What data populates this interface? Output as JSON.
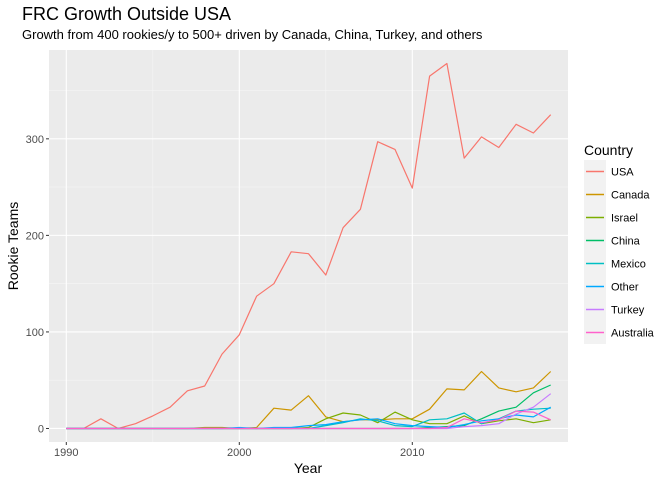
{
  "chart_data": {
    "type": "line",
    "title": "FRC Growth Outside USA",
    "subtitle": "Growth from 400 rookies/y to 500+ driven by Canada, China, Turkey, and others",
    "xlabel": "Year",
    "ylabel": "Rookie Teams",
    "xlim": [
      1989,
      2019
    ],
    "ylim": [
      -14,
      392
    ],
    "x_ticks": [
      1990,
      2000,
      2010
    ],
    "y_ticks": [
      0,
      100,
      200,
      300
    ],
    "grid": true,
    "legend": {
      "title": "Country",
      "position": "right"
    },
    "series": [
      {
        "name": "USA",
        "color": "#F8766D",
        "points": [
          [
            1990,
            0
          ],
          [
            1991,
            0
          ],
          [
            1992,
            10
          ],
          [
            1993,
            0
          ],
          [
            1994,
            5
          ],
          [
            1995,
            13
          ],
          [
            1996,
            22
          ],
          [
            1997,
            39
          ],
          [
            1998,
            44
          ],
          [
            1999,
            77
          ],
          [
            2000,
            97
          ],
          [
            2001,
            137
          ],
          [
            2002,
            150
          ],
          [
            2003,
            183
          ],
          [
            2004,
            181
          ],
          [
            2005,
            159
          ],
          [
            2006,
            208
          ],
          [
            2007,
            227
          ],
          [
            2008,
            297
          ],
          [
            2009,
            289
          ],
          [
            2010,
            249
          ],
          [
            2011,
            365
          ],
          [
            2012,
            378
          ],
          [
            2013,
            280
          ],
          [
            2014,
            302
          ],
          [
            2015,
            291
          ],
          [
            2016,
            315
          ],
          [
            2017,
            306
          ],
          [
            2018,
            325
          ]
        ]
      },
      {
        "name": "Canada",
        "color": "#CD9600",
        "points": [
          [
            1990,
            0
          ],
          [
            1991,
            0
          ],
          [
            1992,
            0
          ],
          [
            1993,
            0
          ],
          [
            1994,
            0
          ],
          [
            1995,
            0
          ],
          [
            1996,
            0
          ],
          [
            1997,
            0
          ],
          [
            1998,
            1
          ],
          [
            1999,
            1
          ],
          [
            2000,
            0
          ],
          [
            2001,
            1
          ],
          [
            2002,
            21
          ],
          [
            2003,
            19
          ],
          [
            2004,
            34
          ],
          [
            2005,
            12
          ],
          [
            2006,
            7
          ],
          [
            2007,
            9
          ],
          [
            2008,
            9
          ],
          [
            2009,
            10
          ],
          [
            2010,
            10
          ],
          [
            2011,
            20
          ],
          [
            2012,
            41
          ],
          [
            2013,
            40
          ],
          [
            2014,
            59
          ],
          [
            2015,
            42
          ],
          [
            2016,
            38
          ],
          [
            2017,
            42
          ],
          [
            2018,
            59
          ]
        ]
      },
      {
        "name": "Israel",
        "color": "#7CAE00",
        "points": [
          [
            1990,
            0
          ],
          [
            1991,
            0
          ],
          [
            1992,
            0
          ],
          [
            1993,
            0
          ],
          [
            1994,
            0
          ],
          [
            1995,
            0
          ],
          [
            1996,
            0
          ],
          [
            1997,
            0
          ],
          [
            1998,
            0
          ],
          [
            1999,
            0
          ],
          [
            2000,
            0
          ],
          [
            2001,
            0
          ],
          [
            2002,
            0
          ],
          [
            2003,
            0
          ],
          [
            2004,
            1
          ],
          [
            2005,
            10
          ],
          [
            2006,
            16
          ],
          [
            2007,
            14
          ],
          [
            2008,
            6
          ],
          [
            2009,
            17
          ],
          [
            2010,
            9
          ],
          [
            2011,
            5
          ],
          [
            2012,
            5
          ],
          [
            2013,
            13
          ],
          [
            2014,
            5
          ],
          [
            2015,
            8
          ],
          [
            2016,
            10
          ],
          [
            2017,
            6
          ],
          [
            2018,
            9
          ]
        ]
      },
      {
        "name": "China",
        "color": "#00BE67",
        "points": [
          [
            1990,
            0
          ],
          [
            1991,
            0
          ],
          [
            1992,
            0
          ],
          [
            1993,
            0
          ],
          [
            1994,
            0
          ],
          [
            1995,
            0
          ],
          [
            1996,
            0
          ],
          [
            1997,
            0
          ],
          [
            1998,
            0
          ],
          [
            1999,
            0
          ],
          [
            2000,
            0
          ],
          [
            2001,
            0
          ],
          [
            2002,
            0
          ],
          [
            2003,
            0
          ],
          [
            2004,
            0
          ],
          [
            2005,
            0
          ],
          [
            2006,
            0
          ],
          [
            2007,
            0
          ],
          [
            2008,
            0
          ],
          [
            2009,
            0
          ],
          [
            2010,
            0
          ],
          [
            2011,
            1
          ],
          [
            2012,
            2
          ],
          [
            2013,
            3
          ],
          [
            2014,
            10
          ],
          [
            2015,
            18
          ],
          [
            2016,
            22
          ],
          [
            2017,
            37
          ],
          [
            2018,
            45
          ]
        ]
      },
      {
        "name": "Mexico",
        "color": "#00BFC4",
        "points": [
          [
            1990,
            0
          ],
          [
            1991,
            0
          ],
          [
            1992,
            0
          ],
          [
            1993,
            0
          ],
          [
            1994,
            0
          ],
          [
            1995,
            0
          ],
          [
            1996,
            0
          ],
          [
            1997,
            0
          ],
          [
            1998,
            0
          ],
          [
            1999,
            0
          ],
          [
            2000,
            0
          ],
          [
            2001,
            0
          ],
          [
            2002,
            0
          ],
          [
            2003,
            0
          ],
          [
            2004,
            0
          ],
          [
            2005,
            3
          ],
          [
            2006,
            6
          ],
          [
            2007,
            10
          ],
          [
            2008,
            8
          ],
          [
            2009,
            3
          ],
          [
            2010,
            2
          ],
          [
            2011,
            9
          ],
          [
            2012,
            10
          ],
          [
            2013,
            16
          ],
          [
            2014,
            5
          ],
          [
            2015,
            10
          ],
          [
            2016,
            18
          ],
          [
            2017,
            20
          ],
          [
            2018,
            21
          ]
        ]
      },
      {
        "name": "Other",
        "color": "#00A9FF",
        "points": [
          [
            1990,
            0
          ],
          [
            1991,
            0
          ],
          [
            1992,
            0
          ],
          [
            1993,
            0
          ],
          [
            1994,
            0
          ],
          [
            1995,
            0
          ],
          [
            1996,
            0
          ],
          [
            1997,
            0
          ],
          [
            1998,
            0
          ],
          [
            1999,
            0
          ],
          [
            2000,
            1
          ],
          [
            2001,
            0
          ],
          [
            2002,
            1
          ],
          [
            2003,
            1
          ],
          [
            2004,
            3
          ],
          [
            2005,
            4
          ],
          [
            2006,
            7
          ],
          [
            2007,
            9
          ],
          [
            2008,
            10
          ],
          [
            2009,
            5
          ],
          [
            2010,
            3
          ],
          [
            2011,
            2
          ],
          [
            2012,
            1
          ],
          [
            2013,
            4
          ],
          [
            2014,
            8
          ],
          [
            2015,
            10
          ],
          [
            2016,
            14
          ],
          [
            2017,
            12
          ],
          [
            2018,
            22
          ]
        ]
      },
      {
        "name": "Turkey",
        "color": "#C77CFF",
        "points": [
          [
            1990,
            0
          ],
          [
            1991,
            0
          ],
          [
            1992,
            0
          ],
          [
            1993,
            0
          ],
          [
            1994,
            0
          ],
          [
            1995,
            0
          ],
          [
            1996,
            0
          ],
          [
            1997,
            0
          ],
          [
            1998,
            0
          ],
          [
            1999,
            0
          ],
          [
            2000,
            0
          ],
          [
            2001,
            0
          ],
          [
            2002,
            0
          ],
          [
            2003,
            0
          ],
          [
            2004,
            0
          ],
          [
            2005,
            0
          ],
          [
            2006,
            0
          ],
          [
            2007,
            0
          ],
          [
            2008,
            0
          ],
          [
            2009,
            0
          ],
          [
            2010,
            0
          ],
          [
            2011,
            0
          ],
          [
            2012,
            0
          ],
          [
            2013,
            2
          ],
          [
            2014,
            3
          ],
          [
            2015,
            5
          ],
          [
            2016,
            15
          ],
          [
            2017,
            22
          ],
          [
            2018,
            36
          ]
        ]
      },
      {
        "name": "Australia",
        "color": "#FF61CC",
        "points": [
          [
            1990,
            0
          ],
          [
            1991,
            0
          ],
          [
            1992,
            0
          ],
          [
            1993,
            0
          ],
          [
            1994,
            0
          ],
          [
            1995,
            0
          ],
          [
            1996,
            0
          ],
          [
            1997,
            0
          ],
          [
            1998,
            0
          ],
          [
            1999,
            0
          ],
          [
            2000,
            0
          ],
          [
            2001,
            0
          ],
          [
            2002,
            0
          ],
          [
            2003,
            0
          ],
          [
            2004,
            0
          ],
          [
            2005,
            0
          ],
          [
            2006,
            0
          ],
          [
            2007,
            0
          ],
          [
            2008,
            0
          ],
          [
            2009,
            0
          ],
          [
            2010,
            0
          ],
          [
            2011,
            0
          ],
          [
            2012,
            1
          ],
          [
            2013,
            10
          ],
          [
            2014,
            6
          ],
          [
            2015,
            9
          ],
          [
            2016,
            18
          ],
          [
            2017,
            17
          ],
          [
            2018,
            9
          ]
        ]
      }
    ]
  }
}
